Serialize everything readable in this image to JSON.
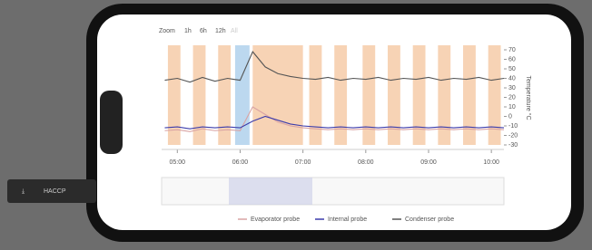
{
  "chart_data": {
    "type": "line",
    "zoom_label": "Zoom",
    "zoom_options": [
      "1h",
      "6h",
      "12h",
      "All"
    ],
    "button": "HACCP",
    "y_label": "Temperature °C",
    "x": [
      4.8,
      5.0,
      5.2,
      5.4,
      5.6,
      5.8,
      6.0,
      6.2,
      6.4,
      6.6,
      6.8,
      7.0,
      7.2,
      7.4,
      7.6,
      7.8,
      8.0,
      8.2,
      8.4,
      8.6,
      8.8,
      9.0,
      9.2,
      9.4,
      9.6,
      9.8,
      10.0,
      10.2
    ],
    "series": [
      {
        "name": "Evaporator probe",
        "color": "#d9a3a3",
        "values": [
          -15,
          -14,
          -16,
          -13,
          -15,
          -14,
          -15,
          10,
          2,
          -6,
          -10,
          -12,
          -13,
          -14,
          -13,
          -14,
          -13,
          -14,
          -13,
          -14,
          -13,
          -14,
          -13,
          -14,
          -13,
          -14,
          -13,
          -14
        ]
      },
      {
        "name": "Internal probe",
        "color": "#3b3bab",
        "values": [
          -12,
          -11,
          -13,
          -11,
          -12,
          -11,
          -12,
          -5,
          0,
          -4,
          -8,
          -10,
          -11,
          -12,
          -11,
          -12,
          -11,
          -12,
          -11,
          -12,
          -11,
          -12,
          -11,
          -12,
          -11,
          -12,
          -11,
          -12
        ]
      },
      {
        "name": "Condenser probe",
        "color": "#555555",
        "values": [
          38,
          40,
          36,
          41,
          37,
          40,
          38,
          68,
          52,
          45,
          42,
          40,
          39,
          41,
          38,
          40,
          39,
          41,
          38,
          40,
          39,
          41,
          38,
          40,
          39,
          41,
          38,
          40
        ]
      }
    ],
    "bands": [
      [
        4.85,
        5.05
      ],
      [
        5.25,
        5.45
      ],
      [
        5.65,
        5.85
      ],
      [
        6.2,
        7.0
      ],
      [
        7.1,
        7.3
      ],
      [
        7.5,
        7.7
      ],
      [
        7.95,
        8.15
      ],
      [
        8.35,
        8.55
      ],
      [
        8.75,
        8.95
      ],
      [
        9.15,
        9.35
      ],
      [
        9.55,
        9.75
      ],
      [
        9.95,
        10.15
      ]
    ],
    "band_color": "#f7d3b5",
    "highlight": [
      5.92,
      6.15
    ],
    "highlight_color": "#bcd8ef",
    "xlim": [
      4.75,
      10.2
    ],
    "xticks": [
      {
        "value": 5,
        "label": "05:00"
      },
      {
        "value": 6,
        "label": "06:00"
      },
      {
        "value": 7,
        "label": "07:00"
      },
      {
        "value": 8,
        "label": "08:00"
      },
      {
        "value": 9,
        "label": "09:00"
      },
      {
        "value": 10,
        "label": "10:00"
      }
    ],
    "ylim": [
      -30,
      70
    ],
    "yticks": [
      -30,
      -20,
      -10,
      0,
      10,
      20,
      30,
      40,
      50,
      60,
      70
    ]
  }
}
